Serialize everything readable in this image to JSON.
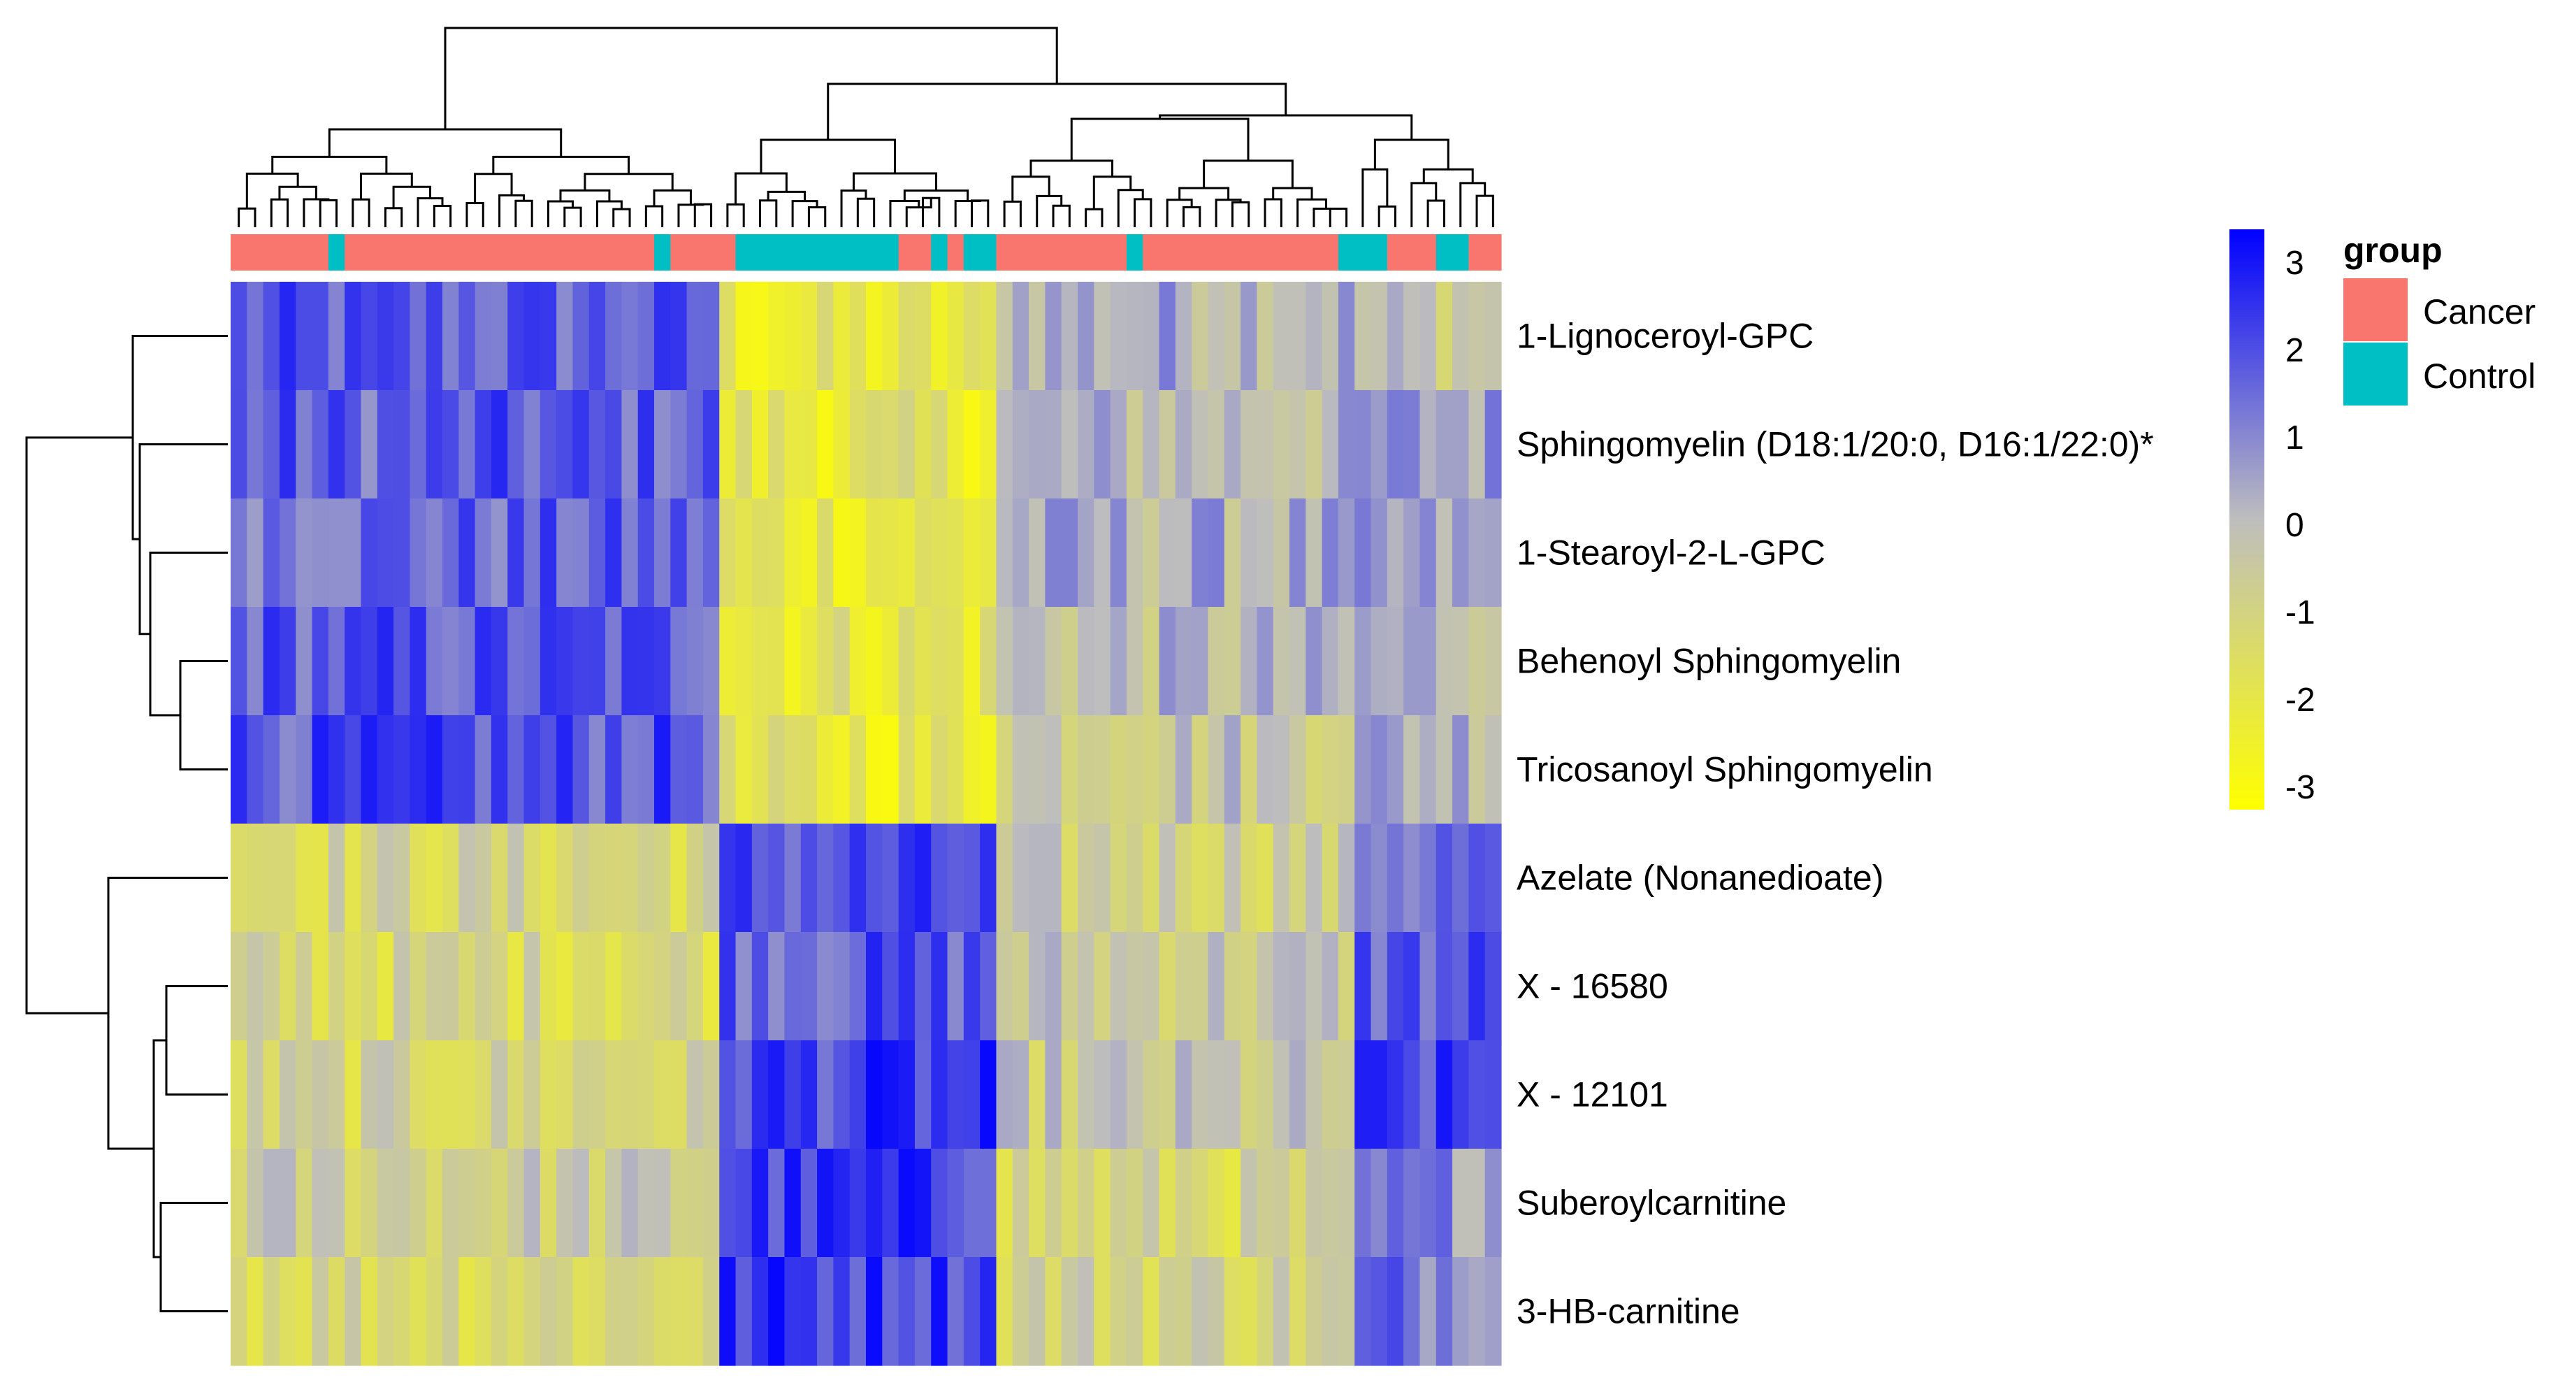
{
  "chart_data": {
    "type": "heatmap",
    "title": "",
    "row_labels": [
      "1-Lignoceroyl-GPC",
      "Sphingomyelin (D18:1/20:0, D16:1/22:0)*",
      "1-Stearoyl-2-L-GPC",
      "Behenoyl Sphingomyelin",
      "Tricosanoyl Sphingomyelin",
      "Azelate (Nonanedioate)",
      "X - 16580",
      "X - 12101",
      "Suberoylcarnitine",
      "3-HB-carnitine"
    ],
    "n_columns": 78,
    "group_annotation": {
      "title": "group",
      "legend": [
        {
          "label": "Cancer",
          "color": "#F8766D"
        },
        {
          "label": "Control",
          "color": "#00BFC4"
        }
      ],
      "values": [
        "Cancer",
        "Cancer",
        "Cancer",
        "Cancer",
        "Cancer",
        "Cancer",
        "Control",
        "Cancer",
        "Cancer",
        "Cancer",
        "Cancer",
        "Cancer",
        "Cancer",
        "Cancer",
        "Cancer",
        "Cancer",
        "Cancer",
        "Cancer",
        "Cancer",
        "Cancer",
        "Cancer",
        "Cancer",
        "Cancer",
        "Cancer",
        "Cancer",
        "Cancer",
        "Control",
        "Cancer",
        "Cancer",
        "Cancer",
        "Cancer",
        "Control",
        "Control",
        "Control",
        "Control",
        "Control",
        "Control",
        "Control",
        "Control",
        "Control",
        "Control",
        "Cancer",
        "Cancer",
        "Control",
        "Cancer",
        "Control",
        "Control",
        "Cancer",
        "Cancer",
        "Cancer",
        "Cancer",
        "Cancer",
        "Cancer",
        "Cancer",
        "Cancer",
        "Control",
        "Cancer",
        "Cancer",
        "Cancer",
        "Cancer",
        "Cancer",
        "Cancer",
        "Cancer",
        "Cancer",
        "Cancer",
        "Cancer",
        "Cancer",
        "Cancer",
        "Control",
        "Control",
        "Control",
        "Cancer",
        "Cancer",
        "Cancer",
        "Control",
        "Control",
        "Cancer",
        "Cancer"
      ]
    },
    "color_scale": {
      "min": -3,
      "max": 3,
      "low_color": "#FFFF00",
      "mid_color": "#BEBEBE",
      "high_color": "#0000FF",
      "ticks": [
        "3",
        "2",
        "1",
        "0",
        "-1",
        "-2",
        "-3"
      ]
    },
    "block_means": {
      "comment": "approximate z-score levels per row for column blocks: cols 0-29 (Cancer-dominant left), cols 30-46 (Control-dominant center), cols 47-68 (mixed), cols 69-77 (right)",
      "column_blocks": [
        [
          0,
          29
        ],
        [
          30,
          46
        ],
        [
          47,
          68
        ],
        [
          69,
          77
        ]
      ],
      "levels": [
        [
          1.5,
          -2.0,
          0.3,
          -0.3
        ],
        [
          1.5,
          -1.8,
          0.0,
          0.5
        ],
        [
          1.4,
          -1.8,
          0.2,
          0.2
        ],
        [
          1.6,
          -1.7,
          -0.1,
          0.2
        ],
        [
          1.7,
          -1.9,
          -0.3,
          0.3
        ],
        [
          -1.0,
          1.7,
          -0.7,
          1.3
        ],
        [
          -1.1,
          1.6,
          -0.4,
          1.6
        ],
        [
          -1.0,
          2.0,
          -0.5,
          1.8
        ],
        [
          -0.6,
          2.0,
          -1.1,
          0.8
        ],
        [
          -1.0,
          2.1,
          -0.8,
          1.2
        ]
      ]
    },
    "row_dendrogram": true,
    "column_dendrogram": true
  }
}
